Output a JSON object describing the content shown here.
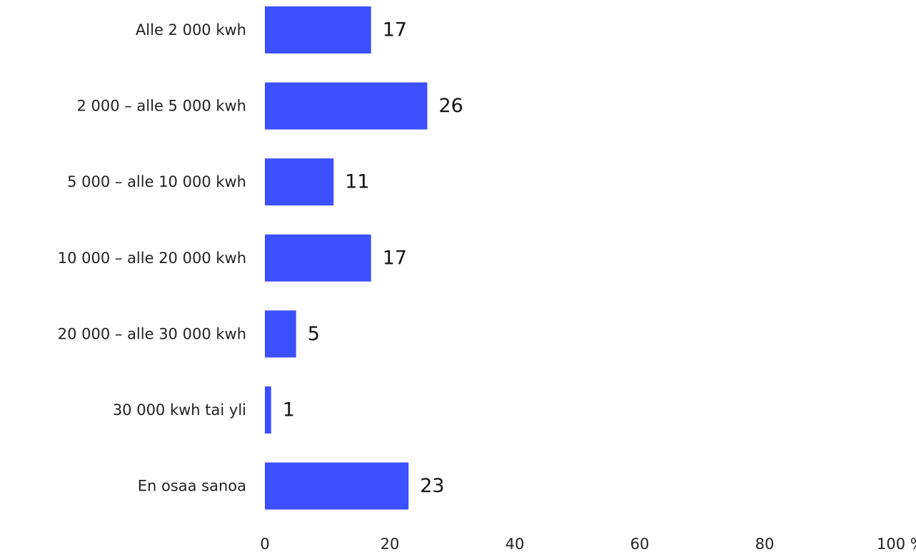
{
  "chart_data": {
    "type": "bar",
    "orientation": "horizontal",
    "categories": [
      "Alle 2 000 kwh",
      "2 000 – alle 5 000 kwh",
      "5 000 – alle 10 000 kwh",
      "10 000 – alle 20 000 kwh",
      "20 000 – alle 30 000 kwh",
      "30 000 kwh tai yli",
      "En osaa sanoa"
    ],
    "values": [
      17,
      26,
      11,
      17,
      5,
      1,
      23
    ],
    "value_labels": [
      "17",
      "26",
      "11",
      "17",
      "5",
      "1",
      "23"
    ],
    "xlim": [
      0,
      100
    ],
    "x_ticks": [
      0,
      20,
      40,
      60,
      80,
      100
    ],
    "x_tick_labels": [
      "0",
      "20",
      "40",
      "60",
      "80",
      "100 %"
    ],
    "grid": false,
    "legend": "none",
    "bar_color": "#3c50ff"
  }
}
